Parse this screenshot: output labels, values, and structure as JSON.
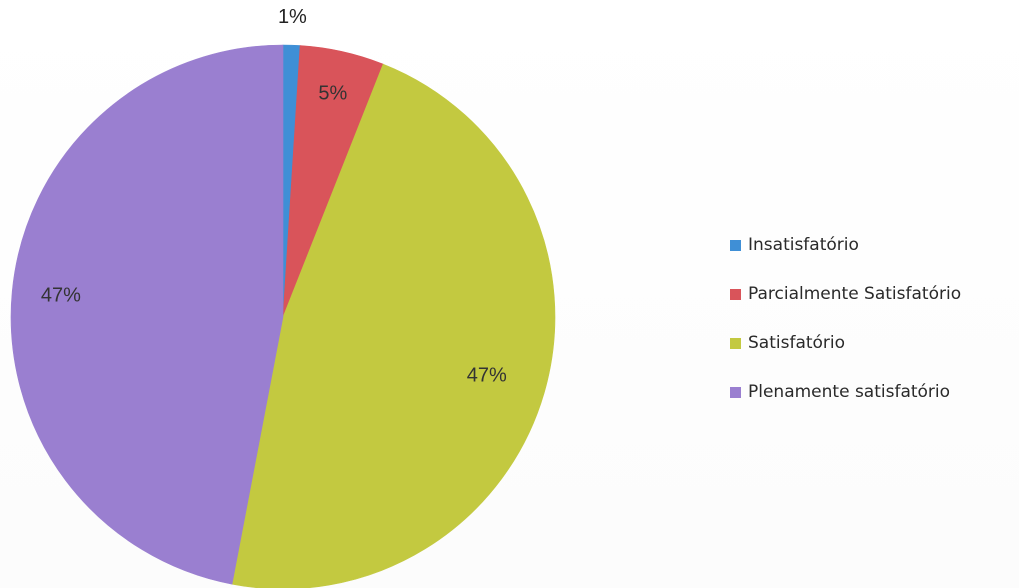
{
  "chart_data": {
    "type": "pie",
    "title": "",
    "slices": [
      {
        "label": "Insatisfatório",
        "value": 1,
        "display": "1%",
        "color": "#3f8fd6"
      },
      {
        "label": "Parcialmente Satisfatório",
        "value": 5,
        "display": "5%",
        "color": "#d9545a"
      },
      {
        "label": "Satisfatório",
        "value": 47,
        "display": "47%",
        "color": "#c3c940"
      },
      {
        "label": "Plenamente satisfatório",
        "value": 47,
        "display": "47%",
        "color": "#9a7fd0"
      }
    ],
    "start_angle_deg": 0,
    "direction": "clockwise",
    "legend_position": "right"
  }
}
